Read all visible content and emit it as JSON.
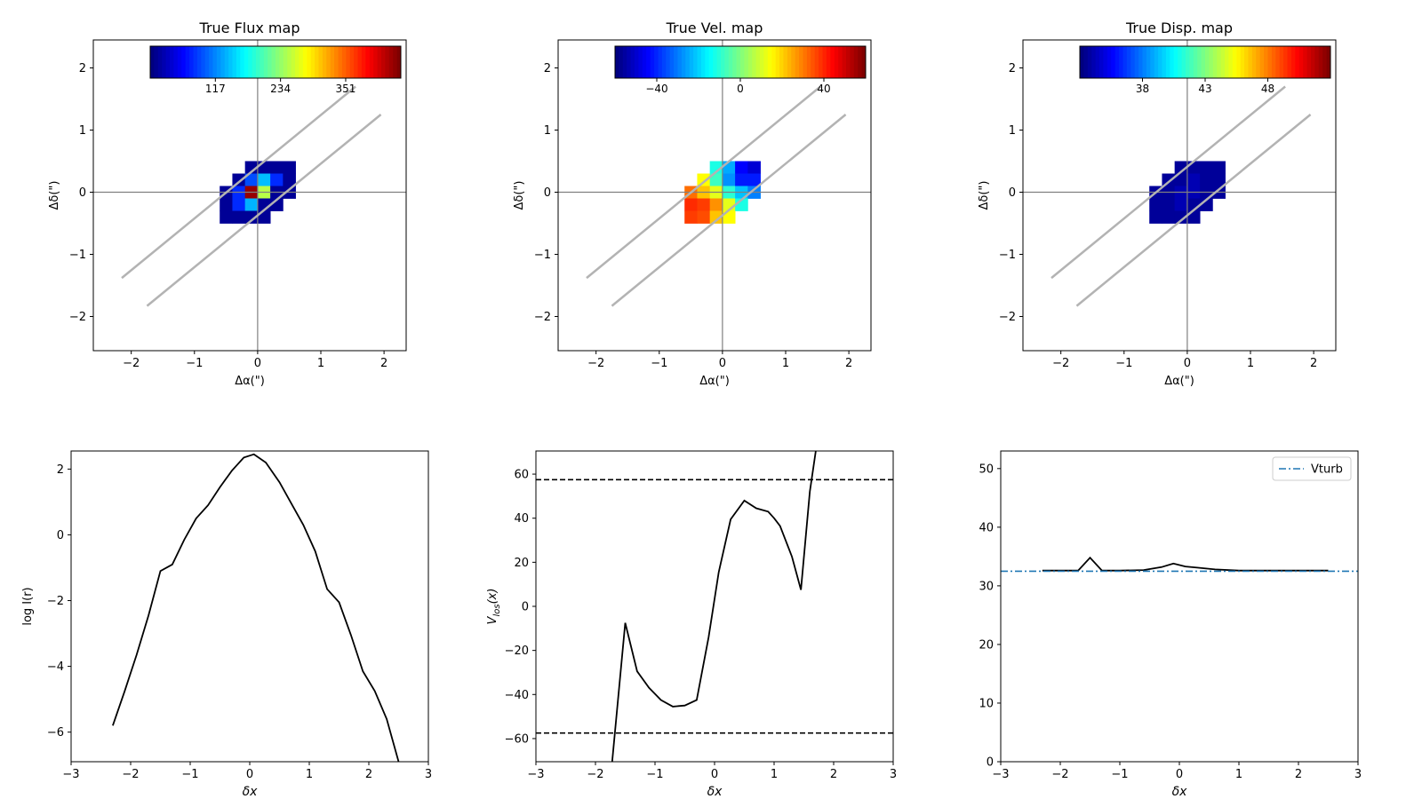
{
  "colormap": "jet",
  "chart_data": [
    {
      "type": "heatmap",
      "title": "True Flux map",
      "xlabel": "Δα(\")",
      "ylabel": "Δδ(\")",
      "xlim": [
        -2.6,
        2.35
      ],
      "ylim": [
        -2.55,
        2.45
      ],
      "xticks": [
        -2,
        -1,
        0,
        1,
        2
      ],
      "xtick_labels": [
        "−2",
        "−1",
        "0",
        "1",
        "2"
      ],
      "yticks": [
        -2,
        -1,
        0,
        1,
        2
      ],
      "ytick_labels": [
        "−2",
        "−1",
        "0",
        "1",
        "2"
      ],
      "pixel_size": 0.2,
      "vmin": 0,
      "vmax": 450,
      "colorbar": {
        "ticks": [
          117,
          234,
          351
        ],
        "labels": [
          "117",
          "234",
          "351"
        ]
      },
      "slit_lines": [
        {
          "x1": -2.15,
          "y1": -1.38,
          "x2": 1.55,
          "y2": 1.7
        },
        {
          "x1": -1.75,
          "y1": -1.83,
          "x2": 1.95,
          "y2": 1.25
        }
      ],
      "pixels": [
        {
          "x": -0.1,
          "y": 0.4,
          "v": 10
        },
        {
          "x": 0.1,
          "y": 0.4,
          "v": 10
        },
        {
          "x": 0.3,
          "y": 0.4,
          "v": 10
        },
        {
          "x": 0.5,
          "y": 0.4,
          "v": 10
        },
        {
          "x": -0.3,
          "y": 0.2,
          "v": 10
        },
        {
          "x": -0.1,
          "y": 0.2,
          "v": 90
        },
        {
          "x": 0.1,
          "y": 0.2,
          "v": 140
        },
        {
          "x": 0.3,
          "y": 0.2,
          "v": 75
        },
        {
          "x": 0.5,
          "y": 0.2,
          "v": 10
        },
        {
          "x": -0.5,
          "y": 0.0,
          "v": 10
        },
        {
          "x": -0.3,
          "y": 0.0,
          "v": 75
        },
        {
          "x": -0.1,
          "y": 0.0,
          "v": 440
        },
        {
          "x": 0.1,
          "y": 0.0,
          "v": 250
        },
        {
          "x": 0.3,
          "y": 0.0,
          "v": 10
        },
        {
          "x": 0.5,
          "y": 0.0,
          "v": 10
        },
        {
          "x": -0.5,
          "y": -0.2,
          "v": 10
        },
        {
          "x": -0.3,
          "y": -0.2,
          "v": 75
        },
        {
          "x": -0.1,
          "y": -0.2,
          "v": 135
        },
        {
          "x": 0.1,
          "y": -0.2,
          "v": 10
        },
        {
          "x": 0.3,
          "y": -0.2,
          "v": 10
        },
        {
          "x": -0.5,
          "y": -0.4,
          "v": 10
        },
        {
          "x": -0.3,
          "y": -0.4,
          "v": 10
        },
        {
          "x": -0.1,
          "y": -0.4,
          "v": 10
        },
        {
          "x": 0.1,
          "y": -0.4,
          "v": 10
        }
      ]
    },
    {
      "type": "heatmap",
      "title": "True Vel. map",
      "xlabel": "Δα(\")",
      "ylabel": "Δδ(\")",
      "xlim": [
        -2.6,
        2.35
      ],
      "ylim": [
        -2.55,
        2.45
      ],
      "xticks": [
        -2,
        -1,
        0,
        1,
        2
      ],
      "xtick_labels": [
        "−2",
        "−1",
        "0",
        "1",
        "2"
      ],
      "yticks": [
        -2,
        -1,
        0,
        1,
        2
      ],
      "ytick_labels": [
        "−2",
        "−1",
        "0",
        "1",
        "2"
      ],
      "pixel_size": 0.2,
      "vmin": -60,
      "vmax": 60,
      "colorbar": {
        "ticks": [
          -40,
          0,
          40
        ],
        "labels": [
          "−40",
          "0",
          "40"
        ]
      },
      "slit_lines": [
        {
          "x1": -2.15,
          "y1": -1.38,
          "x2": 1.55,
          "y2": 1.7
        },
        {
          "x1": -1.75,
          "y1": -1.83,
          "x2": 1.95,
          "y2": 1.25
        }
      ],
      "pixels": [
        {
          "x": -0.1,
          "y": 0.4,
          "v": -12
        },
        {
          "x": 0.1,
          "y": 0.4,
          "v": -25
        },
        {
          "x": 0.3,
          "y": 0.4,
          "v": -45
        },
        {
          "x": 0.5,
          "y": 0.4,
          "v": -50
        },
        {
          "x": -0.3,
          "y": 0.2,
          "v": 15
        },
        {
          "x": -0.1,
          "y": 0.2,
          "v": -8
        },
        {
          "x": 0.1,
          "y": 0.2,
          "v": -28
        },
        {
          "x": 0.3,
          "y": 0.2,
          "v": -42
        },
        {
          "x": 0.5,
          "y": 0.2,
          "v": -42
        },
        {
          "x": -0.5,
          "y": 0.0,
          "v": 32
        },
        {
          "x": -0.3,
          "y": 0.0,
          "v": 22
        },
        {
          "x": -0.1,
          "y": 0.0,
          "v": 12
        },
        {
          "x": 0.1,
          "y": 0.0,
          "v": -10
        },
        {
          "x": 0.3,
          "y": 0.0,
          "v": -22
        },
        {
          "x": 0.5,
          "y": 0.0,
          "v": -30
        },
        {
          "x": -0.5,
          "y": -0.2,
          "v": 40
        },
        {
          "x": -0.3,
          "y": -0.2,
          "v": 38
        },
        {
          "x": -0.1,
          "y": -0.2,
          "v": 28
        },
        {
          "x": 0.1,
          "y": -0.2,
          "v": 12
        },
        {
          "x": 0.3,
          "y": -0.2,
          "v": -12
        },
        {
          "x": -0.5,
          "y": -0.4,
          "v": 38
        },
        {
          "x": -0.3,
          "y": -0.4,
          "v": 36
        },
        {
          "x": -0.1,
          "y": -0.4,
          "v": 22
        },
        {
          "x": 0.1,
          "y": -0.4,
          "v": 15
        }
      ]
    },
    {
      "type": "heatmap",
      "title": "True Disp. map",
      "xlabel": "Δα(\")",
      "ylabel": "Δδ(\")",
      "xlim": [
        -2.6,
        2.35
      ],
      "ylim": [
        -2.55,
        2.45
      ],
      "xticks": [
        -2,
        -1,
        0,
        1,
        2
      ],
      "xtick_labels": [
        "−2",
        "−1",
        "0",
        "1",
        "2"
      ],
      "yticks": [
        -2,
        -1,
        0,
        1,
        2
      ],
      "ytick_labels": [
        "−2",
        "−1",
        "0",
        "1",
        "2"
      ],
      "pixel_size": 0.2,
      "vmin": 33,
      "vmax": 53,
      "colorbar": {
        "ticks": [
          38,
          43,
          48
        ],
        "labels": [
          "38",
          "43",
          "48"
        ]
      },
      "slit_lines": [
        {
          "x1": -2.15,
          "y1": -1.38,
          "x2": 1.55,
          "y2": 1.7
        },
        {
          "x1": -1.75,
          "y1": -1.83,
          "x2": 1.95,
          "y2": 1.25
        }
      ],
      "pixels": [
        {
          "x": -0.1,
          "y": 0.4,
          "v": 33.5
        },
        {
          "x": 0.1,
          "y": 0.4,
          "v": 33.5
        },
        {
          "x": 0.3,
          "y": 0.4,
          "v": 33.5
        },
        {
          "x": 0.5,
          "y": 0.4,
          "v": 33.5
        },
        {
          "x": -0.3,
          "y": 0.2,
          "v": 33.5
        },
        {
          "x": -0.1,
          "y": 0.2,
          "v": 33.5
        },
        {
          "x": 0.1,
          "y": 0.2,
          "v": 34
        },
        {
          "x": 0.3,
          "y": 0.2,
          "v": 33.5
        },
        {
          "x": 0.5,
          "y": 0.2,
          "v": 33.5
        },
        {
          "x": -0.5,
          "y": 0.0,
          "v": 33.5
        },
        {
          "x": -0.3,
          "y": 0.0,
          "v": 33.5
        },
        {
          "x": -0.1,
          "y": 0.0,
          "v": 34
        },
        {
          "x": 0.1,
          "y": 0.0,
          "v": 34
        },
        {
          "x": 0.3,
          "y": 0.0,
          "v": 33.5
        },
        {
          "x": 0.5,
          "y": 0.0,
          "v": 33.5
        },
        {
          "x": -0.5,
          "y": -0.2,
          "v": 33.5
        },
        {
          "x": -0.3,
          "y": -0.2,
          "v": 33.5
        },
        {
          "x": -0.1,
          "y": -0.2,
          "v": 34
        },
        {
          "x": 0.1,
          "y": -0.2,
          "v": 33.5
        },
        {
          "x": 0.3,
          "y": -0.2,
          "v": 33.5
        },
        {
          "x": -0.5,
          "y": -0.4,
          "v": 33.5
        },
        {
          "x": -0.3,
          "y": -0.4,
          "v": 33.5
        },
        {
          "x": -0.1,
          "y": -0.4,
          "v": 33.5
        },
        {
          "x": 0.1,
          "y": -0.4,
          "v": 33.5
        }
      ]
    },
    {
      "type": "line",
      "title": "",
      "xlabel": "δx",
      "ylabel": "log I(r)",
      "xlim": [
        -3,
        3
      ],
      "ylim": [
        -6.9,
        2.55
      ],
      "xticks": [
        -3,
        -2,
        -1,
        0,
        1,
        2,
        3
      ],
      "xtick_labels": [
        "−3",
        "−2",
        "−1",
        "0",
        "1",
        "2",
        "3"
      ],
      "yticks": [
        -6,
        -4,
        -2,
        0,
        2
      ],
      "ytick_labels": [
        "−6",
        "−4",
        "−2",
        "0",
        "2"
      ],
      "series": [
        {
          "x": [
            -2.3,
            -2.1,
            -1.9,
            -1.7,
            -1.5,
            -1.3,
            -1.1,
            -0.9,
            -0.7,
            -0.5,
            -0.3,
            -0.1,
            0.07,
            0.27,
            0.5,
            0.7,
            0.9,
            1.1,
            1.3,
            1.5,
            1.7,
            1.9,
            2.1,
            2.3,
            2.5
          ],
          "y": [
            -5.8,
            -4.75,
            -3.65,
            -2.45,
            -1.1,
            -0.9,
            -0.15,
            0.5,
            0.9,
            1.45,
            1.95,
            2.35,
            2.45,
            2.2,
            1.6,
            0.95,
            0.3,
            -0.5,
            -1.65,
            -2.05,
            -3.05,
            -4.15,
            -4.75,
            -5.6,
            -6.9
          ]
        }
      ]
    },
    {
      "type": "line",
      "title": "",
      "xlabel": "δx",
      "ylabel": "V_los(x)",
      "xlim": [
        -3,
        3
      ],
      "ylim": [
        -70.5,
        70.5
      ],
      "xticks": [
        -3,
        -2,
        -1,
        0,
        1,
        2,
        3
      ],
      "xtick_labels": [
        "−3",
        "−2",
        "−1",
        "0",
        "1",
        "2",
        "3"
      ],
      "yticks": [
        -60,
        -40,
        -20,
        0,
        20,
        40,
        60
      ],
      "ytick_labels": [
        "−60",
        "−40",
        "−20",
        "0",
        "20",
        "40",
        "60"
      ],
      "hlines": [
        57.5,
        -57.5
      ],
      "series": [
        {
          "x": [
            -1.72,
            -1.5,
            -1.3,
            -1.1,
            -0.9,
            -0.7,
            -0.5,
            -0.3,
            -0.1,
            0.07,
            0.27,
            0.5,
            0.7,
            0.9,
            1.0,
            1.1,
            1.3,
            1.45,
            1.6,
            1.7
          ],
          "y": [
            -70.5,
            -7.5,
            -29.5,
            -37,
            -42.5,
            -45.5,
            -45,
            -42.5,
            -14,
            15.5,
            39.5,
            48,
            44.5,
            43,
            40,
            36.5,
            22.5,
            7.5,
            52,
            70.5
          ]
        }
      ]
    },
    {
      "type": "line",
      "title": "",
      "xlabel": "δx",
      "ylabel": "",
      "xlim": [
        -3,
        3
      ],
      "ylim": [
        0,
        53
      ],
      "xticks": [
        -3,
        -2,
        -1,
        0,
        1,
        2,
        3
      ],
      "xtick_labels": [
        "−3",
        "−2",
        "−1",
        "0",
        "1",
        "2",
        "3"
      ],
      "yticks": [
        0,
        10,
        20,
        30,
        40,
        50
      ],
      "ytick_labels": [
        "0",
        "10",
        "20",
        "30",
        "40",
        "50"
      ],
      "legend": {
        "entries": [
          "Vturb"
        ],
        "placement": "top-right"
      },
      "series": [
        {
          "x": [
            -2.3,
            -1.7,
            -1.5,
            -1.3,
            -1.0,
            -0.6,
            -0.3,
            -0.1,
            0.1,
            0.3,
            0.6,
            1.0,
            1.5,
            2.0,
            2.5
          ],
          "y": [
            32.6,
            32.6,
            34.8,
            32.6,
            32.6,
            32.7,
            33.2,
            33.8,
            33.3,
            33.1,
            32.8,
            32.6,
            32.6,
            32.6,
            32.6
          ]
        },
        {
          "name": "Vturb",
          "x": [
            -3,
            3
          ],
          "y": [
            32.5,
            32.5
          ]
        }
      ]
    }
  ]
}
